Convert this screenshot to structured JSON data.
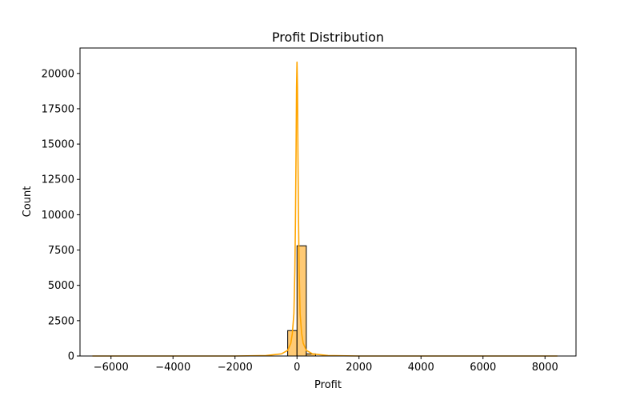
{
  "chart_data": {
    "type": "histogram",
    "title": "Profit Distribution",
    "xlabel": "Profit",
    "ylabel": "Count",
    "xlim": [
      -7000,
      9000
    ],
    "ylim": [
      0,
      21800
    ],
    "xticks": [
      -6000,
      -4000,
      -2000,
      0,
      2000,
      4000,
      6000,
      8000
    ],
    "xtick_labels": [
      "−6000",
      "−4000",
      "−2000",
      "0",
      "2000",
      "4000",
      "6000",
      "8000"
    ],
    "yticks": [
      0,
      2500,
      5000,
      7500,
      10000,
      12500,
      15000,
      17500,
      20000
    ],
    "ytick_labels": [
      "0",
      "2500",
      "5000",
      "7500",
      "10000",
      "12500",
      "15000",
      "17500",
      "20000"
    ],
    "grid": false,
    "bins": [
      {
        "x0": -300,
        "x1": 0,
        "count": 1800
      },
      {
        "x0": 0,
        "x1": 300,
        "count": 7800
      },
      {
        "x0": 300,
        "x1": 600,
        "count": 150
      }
    ],
    "kde": {
      "x": [
        -6600,
        -2000,
        -1000,
        -500,
        -300,
        -200,
        -150,
        -100,
        -70,
        -50,
        -30,
        -15,
        0,
        15,
        30,
        50,
        70,
        100,
        150,
        200,
        300,
        500,
        1000,
        2000,
        8400
      ],
      "y": [
        0,
        0,
        30,
        150,
        400,
        900,
        1600,
        3000,
        6000,
        9500,
        14500,
        19000,
        20800,
        19000,
        14500,
        9500,
        6000,
        3000,
        1600,
        900,
        400,
        150,
        30,
        0,
        0
      ]
    },
    "colors": {
      "bar_fill": "#ffc15c",
      "bar_edge": "#000000",
      "kde_line": "#ffa500"
    }
  }
}
